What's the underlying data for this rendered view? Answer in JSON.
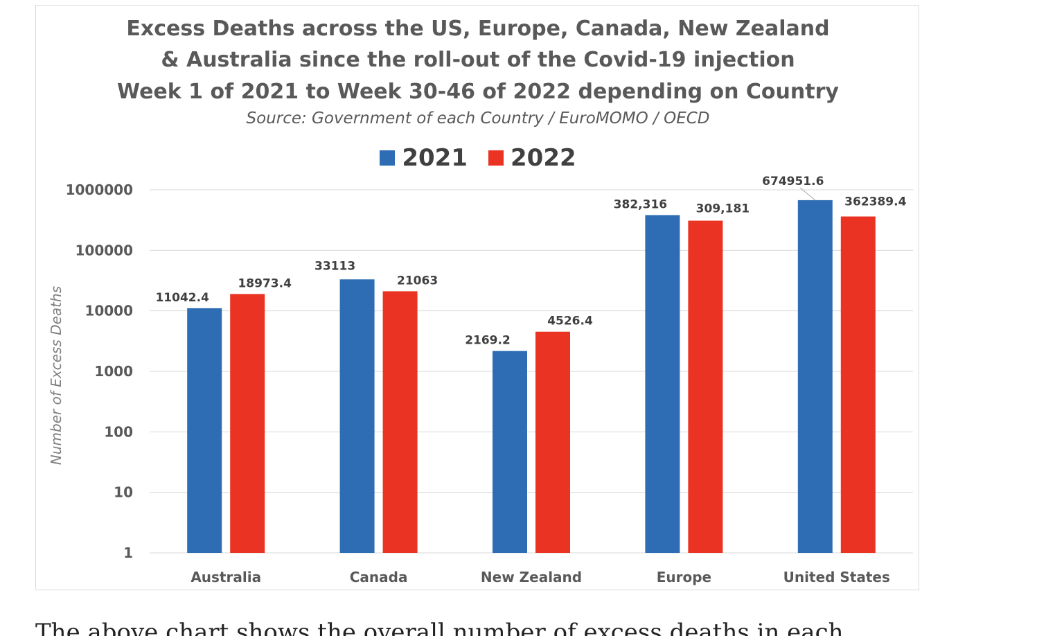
{
  "colors": {
    "series_2021": "#2e6db4",
    "series_2022": "#ea3323",
    "grid": "#d9d9d9",
    "text": "#595959"
  },
  "chart_data": {
    "type": "bar",
    "title_lines": [
      "Excess Deaths across the US, Europe, Canada, New Zealand",
      "& Australia since the roll-out of the Covid-19 injection",
      "Week 1 of 2021 to Week 30-46 of 2022 depending on Country"
    ],
    "subtitle": "Source: Government of each Country / EuroMOMO / OECD",
    "ylabel": "Number of Excess Deaths",
    "y_scale": "log",
    "ylim": [
      1,
      1000000
    ],
    "y_ticks": [
      "1",
      "10",
      "100",
      "1000",
      "10000",
      "100000",
      "1000000"
    ],
    "grid": true,
    "legend_position": "top-center",
    "categories": [
      "Australia",
      "Canada",
      "New Zealand",
      "Europe",
      "United States"
    ],
    "series": [
      {
        "name": "2021",
        "values": [
          11042.4,
          33113,
          2169.2,
          382316,
          674951.6
        ],
        "labels": [
          "11042.4",
          "33113",
          "2169.2",
          "382,316",
          "674951.6"
        ]
      },
      {
        "name": "2022",
        "values": [
          18973.4,
          21063,
          4526.4,
          309181,
          362389.4
        ],
        "labels": [
          "18973.4",
          "21063",
          "4526.4",
          "309,181",
          "362389.4"
        ]
      }
    ]
  },
  "body_text": "The above chart shows the overall number of excess deaths in each"
}
